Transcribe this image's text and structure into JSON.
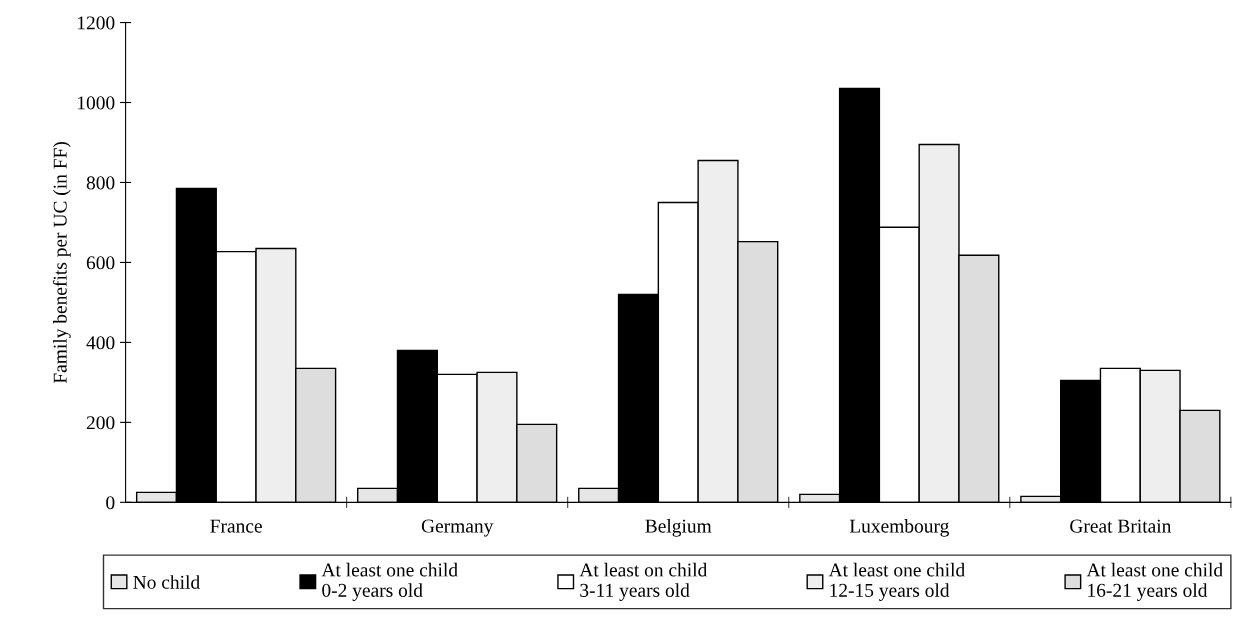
{
  "chart_data": {
    "type": "bar",
    "ylabel": "Family benefits per UC (in FF)",
    "categories": [
      "France",
      "Germany",
      "Belgium",
      "Luxembourg",
      "Great Britain"
    ],
    "series": [
      {
        "name": "No child",
        "color": "#e6e6e6",
        "values": [
          25,
          35,
          35,
          20,
          15
        ]
      },
      {
        "name": "At least one child\n0-2 years old",
        "color": "#000000",
        "values": [
          785,
          380,
          520,
          1035,
          305
        ]
      },
      {
        "name": "At least on child\n3-11 years old",
        "color": "#ffffff",
        "values": [
          627,
          320,
          750,
          688,
          335
        ]
      },
      {
        "name": "At least one child\n12-15 years old",
        "color": "#eeeeee",
        "values": [
          635,
          325,
          855,
          895,
          330
        ]
      },
      {
        "name": "At least one child\n16-21 years old",
        "color": "#dddddd",
        "values": [
          335,
          195,
          652,
          618,
          230
        ]
      }
    ],
    "ylim": [
      0,
      1200
    ],
    "yticks": [
      0,
      200,
      400,
      600,
      800,
      1000,
      1200
    ],
    "grid": false,
    "legend": "bottom"
  }
}
